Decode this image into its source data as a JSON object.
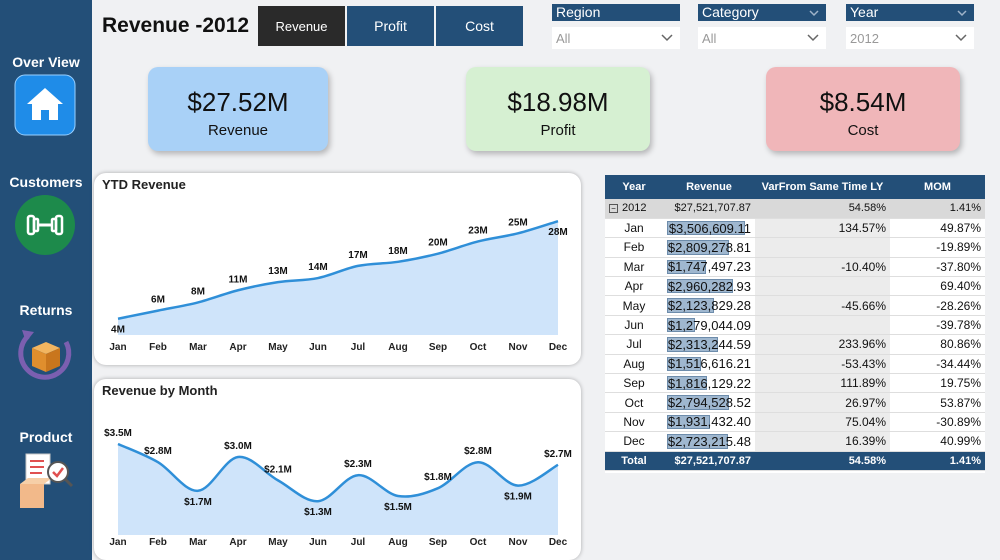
{
  "sidebar": {
    "items": [
      {
        "label": "Over View",
        "icon": "home-icon"
      },
      {
        "label": "Customers",
        "icon": "dumbbell-icon"
      },
      {
        "label": "Returns",
        "icon": "return-box-icon"
      },
      {
        "label": "Product",
        "icon": "product-checklist-icon"
      }
    ]
  },
  "header": {
    "title": "Revenue -2012",
    "tabs": [
      {
        "label": "Revenue",
        "active": true
      },
      {
        "label": "Profit",
        "active": false
      },
      {
        "label": "Cost",
        "active": false
      }
    ]
  },
  "slicers": [
    {
      "label": "Region",
      "value": "All"
    },
    {
      "label": "Category",
      "value": "All"
    },
    {
      "label": "Year",
      "value": "2012"
    }
  ],
  "kpis": [
    {
      "value": "$27.52M",
      "label": "Revenue",
      "color": "#a9d1f7"
    },
    {
      "value": "$18.98M",
      "label": "Profit",
      "color": "#d6f0d2"
    },
    {
      "value": "$8.54M",
      "label": "Cost",
      "color": "#f0b6b9"
    }
  ],
  "chart_data": [
    {
      "type": "area",
      "title": "YTD Revenue",
      "categories": [
        "Jan",
        "Feb",
        "Mar",
        "Apr",
        "May",
        "Jun",
        "Jul",
        "Aug",
        "Sep",
        "Oct",
        "Nov",
        "Dec"
      ],
      "values": [
        4,
        6,
        8,
        11,
        13,
        14,
        17,
        18,
        20,
        23,
        25,
        28
      ],
      "data_labels": [
        "4M",
        "6M",
        "8M",
        "11M",
        "13M",
        "14M",
        "17M",
        "18M",
        "20M",
        "23M",
        "25M",
        "28M"
      ],
      "ylim": [
        0,
        30
      ],
      "color": "#2f8fd8",
      "fill": "#cfe4fa"
    },
    {
      "type": "area",
      "title": "Revenue by Month",
      "categories": [
        "Jan",
        "Feb",
        "Mar",
        "Apr",
        "May",
        "Jun",
        "Jul",
        "Aug",
        "Sep",
        "Oct",
        "Nov",
        "Dec"
      ],
      "values": [
        3.5,
        2.8,
        1.7,
        3.0,
        2.1,
        1.3,
        2.3,
        1.5,
        1.8,
        2.8,
        1.9,
        2.7
      ],
      "data_labels": [
        "$3.5M",
        "$2.8M",
        "$1.7M",
        "$3.0M",
        "$2.1M",
        "$1.3M",
        "$2.3M",
        "$1.5M",
        "$1.8M",
        "$2.8M",
        "$1.9M",
        "$2.7M"
      ],
      "ylim": [
        0,
        4
      ],
      "color": "#2f8fd8",
      "fill": "#cfe4fa"
    }
  ],
  "table": {
    "headers": [
      "Year",
      "Revenue",
      "VarFrom Same Time LY",
      "MOM"
    ],
    "year_row": {
      "year": "2012",
      "revenue": "$27,521,707.87",
      "var": "54.58%",
      "mom": "1.41%"
    },
    "rows": [
      {
        "month": "Jan",
        "revenue": "$3,506,609.11",
        "rev_value": 3506609,
        "var": "134.57%",
        "mom": "49.87%"
      },
      {
        "month": "Feb",
        "revenue": "$2,809,278.81",
        "rev_value": 2809278,
        "var": "",
        "mom": "-19.89%"
      },
      {
        "month": "Mar",
        "revenue": "$1,747,497.23",
        "rev_value": 1747497,
        "var": "-10.40%",
        "mom": "-37.80%"
      },
      {
        "month": "Apr",
        "revenue": "$2,960,282.93",
        "rev_value": 2960282,
        "var": "",
        "mom": "69.40%"
      },
      {
        "month": "May",
        "revenue": "$2,123,829.28",
        "rev_value": 2123829,
        "var": "-45.66%",
        "mom": "-28.26%"
      },
      {
        "month": "Jun",
        "revenue": "$1,279,044.09",
        "rev_value": 1279044,
        "var": "",
        "mom": "-39.78%"
      },
      {
        "month": "Jul",
        "revenue": "$2,313,244.59",
        "rev_value": 2313244,
        "var": "233.96%",
        "mom": "80.86%"
      },
      {
        "month": "Aug",
        "revenue": "$1,516,616.21",
        "rev_value": 1516616,
        "var": "-53.43%",
        "mom": "-34.44%"
      },
      {
        "month": "Sep",
        "revenue": "$1,816,129.22",
        "rev_value": 1816129,
        "var": "111.89%",
        "mom": "19.75%"
      },
      {
        "month": "Oct",
        "revenue": "$2,794,528.52",
        "rev_value": 2794528,
        "var": "26.97%",
        "mom": "53.87%"
      },
      {
        "month": "Nov",
        "revenue": "$1,931,432.40",
        "rev_value": 1931432,
        "var": "75.04%",
        "mom": "-30.89%"
      },
      {
        "month": "Dec",
        "revenue": "$2,723,215.48",
        "rev_value": 2723215,
        "var": "16.39%",
        "mom": "40.99%"
      }
    ],
    "total_row": {
      "label": "Total",
      "revenue": "$27,521,707.87",
      "var": "54.58%",
      "mom": "1.41%"
    }
  },
  "colors": {
    "sidebar": "#234f78",
    "accent": "#2f8fd8"
  }
}
